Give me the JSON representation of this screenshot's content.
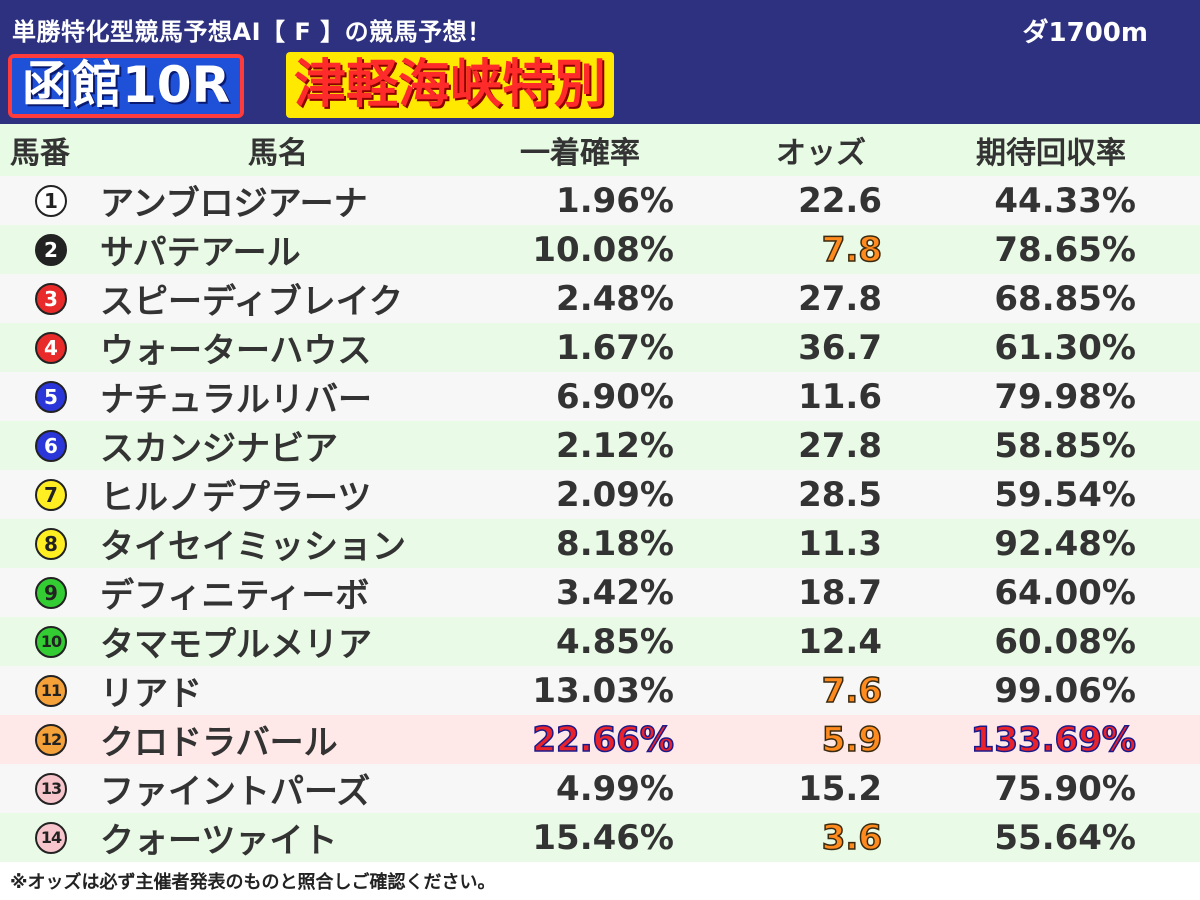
{
  "header": {
    "title": "単勝特化型競馬予想AI【 F 】の競馬予想！",
    "distance": "ダ1700m",
    "race_id": "函館10R",
    "race_name": "津軽海峡特別"
  },
  "columns": {
    "number": "馬番",
    "name": "馬名",
    "win_prob": "一着確率",
    "odds": "オッズ",
    "expected_return": "期待回収率"
  },
  "rows": [
    {
      "num": "1",
      "badge_bg": "#ffffff",
      "badge_fg": "#222222",
      "name": "アンブロジアーナ",
      "prob": "1.96%",
      "odds": "22.6",
      "roi": "44.33%",
      "odds_hl": false,
      "row_hl": false
    },
    {
      "num": "2",
      "badge_bg": "#222222",
      "badge_fg": "#ffffff",
      "name": "サパテアール",
      "prob": "10.08%",
      "odds": "7.8",
      "roi": "78.65%",
      "odds_hl": true,
      "row_hl": false
    },
    {
      "num": "3",
      "badge_bg": "#e82a2a",
      "badge_fg": "#ffffff",
      "name": "スピーディブレイク",
      "prob": "2.48%",
      "odds": "27.8",
      "roi": "68.85%",
      "odds_hl": false,
      "row_hl": false
    },
    {
      "num": "4",
      "badge_bg": "#e82a2a",
      "badge_fg": "#ffffff",
      "name": "ウォーターハウス",
      "prob": "1.67%",
      "odds": "36.7",
      "roi": "61.30%",
      "odds_hl": false,
      "row_hl": false
    },
    {
      "num": "5",
      "badge_bg": "#2a36d8",
      "badge_fg": "#ffffff",
      "name": "ナチュラルリバー",
      "prob": "6.90%",
      "odds": "11.6",
      "roi": "79.98%",
      "odds_hl": false,
      "row_hl": false
    },
    {
      "num": "6",
      "badge_bg": "#2a36d8",
      "badge_fg": "#ffffff",
      "name": "スカンジナビア",
      "prob": "2.12%",
      "odds": "27.8",
      "roi": "58.85%",
      "odds_hl": false,
      "row_hl": false
    },
    {
      "num": "7",
      "badge_bg": "#ffee22",
      "badge_fg": "#222222",
      "name": "ヒルノデプラーツ",
      "prob": "2.09%",
      "odds": "28.5",
      "roi": "59.54%",
      "odds_hl": false,
      "row_hl": false
    },
    {
      "num": "8",
      "badge_bg": "#ffee22",
      "badge_fg": "#222222",
      "name": "タイセイミッション",
      "prob": "8.18%",
      "odds": "11.3",
      "roi": "92.48%",
      "odds_hl": false,
      "row_hl": false
    },
    {
      "num": "9",
      "badge_bg": "#33cc33",
      "badge_fg": "#222222",
      "name": "デフィニティーボ",
      "prob": "3.42%",
      "odds": "18.7",
      "roi": "64.00%",
      "odds_hl": false,
      "row_hl": false
    },
    {
      "num": "10",
      "badge_bg": "#33cc33",
      "badge_fg": "#222222",
      "name": "タマモプルメリア",
      "prob": "4.85%",
      "odds": "12.4",
      "roi": "60.08%",
      "odds_hl": false,
      "row_hl": false
    },
    {
      "num": "11",
      "badge_bg": "#f5a13a",
      "badge_fg": "#222222",
      "name": "リアド",
      "prob": "13.03%",
      "odds": "7.6",
      "roi": "99.06%",
      "odds_hl": true,
      "row_hl": false
    },
    {
      "num": "12",
      "badge_bg": "#f5a13a",
      "badge_fg": "#222222",
      "name": "クロドラバール",
      "prob": "22.66%",
      "odds": "5.9",
      "roi": "133.69%",
      "odds_hl": true,
      "row_hl": true
    },
    {
      "num": "13",
      "badge_bg": "#f7c6cc",
      "badge_fg": "#222222",
      "name": "ファイントパーズ",
      "prob": "4.99%",
      "odds": "15.2",
      "roi": "75.90%",
      "odds_hl": false,
      "row_hl": false
    },
    {
      "num": "14",
      "badge_bg": "#f7c6cc",
      "badge_fg": "#222222",
      "name": "クォーツァイト",
      "prob": "15.46%",
      "odds": "3.6",
      "roi": "55.64%",
      "odds_hl": true,
      "row_hl": false
    }
  ],
  "footer": "※オッズは必ず主催者発表のものと照合しご確認ください。"
}
